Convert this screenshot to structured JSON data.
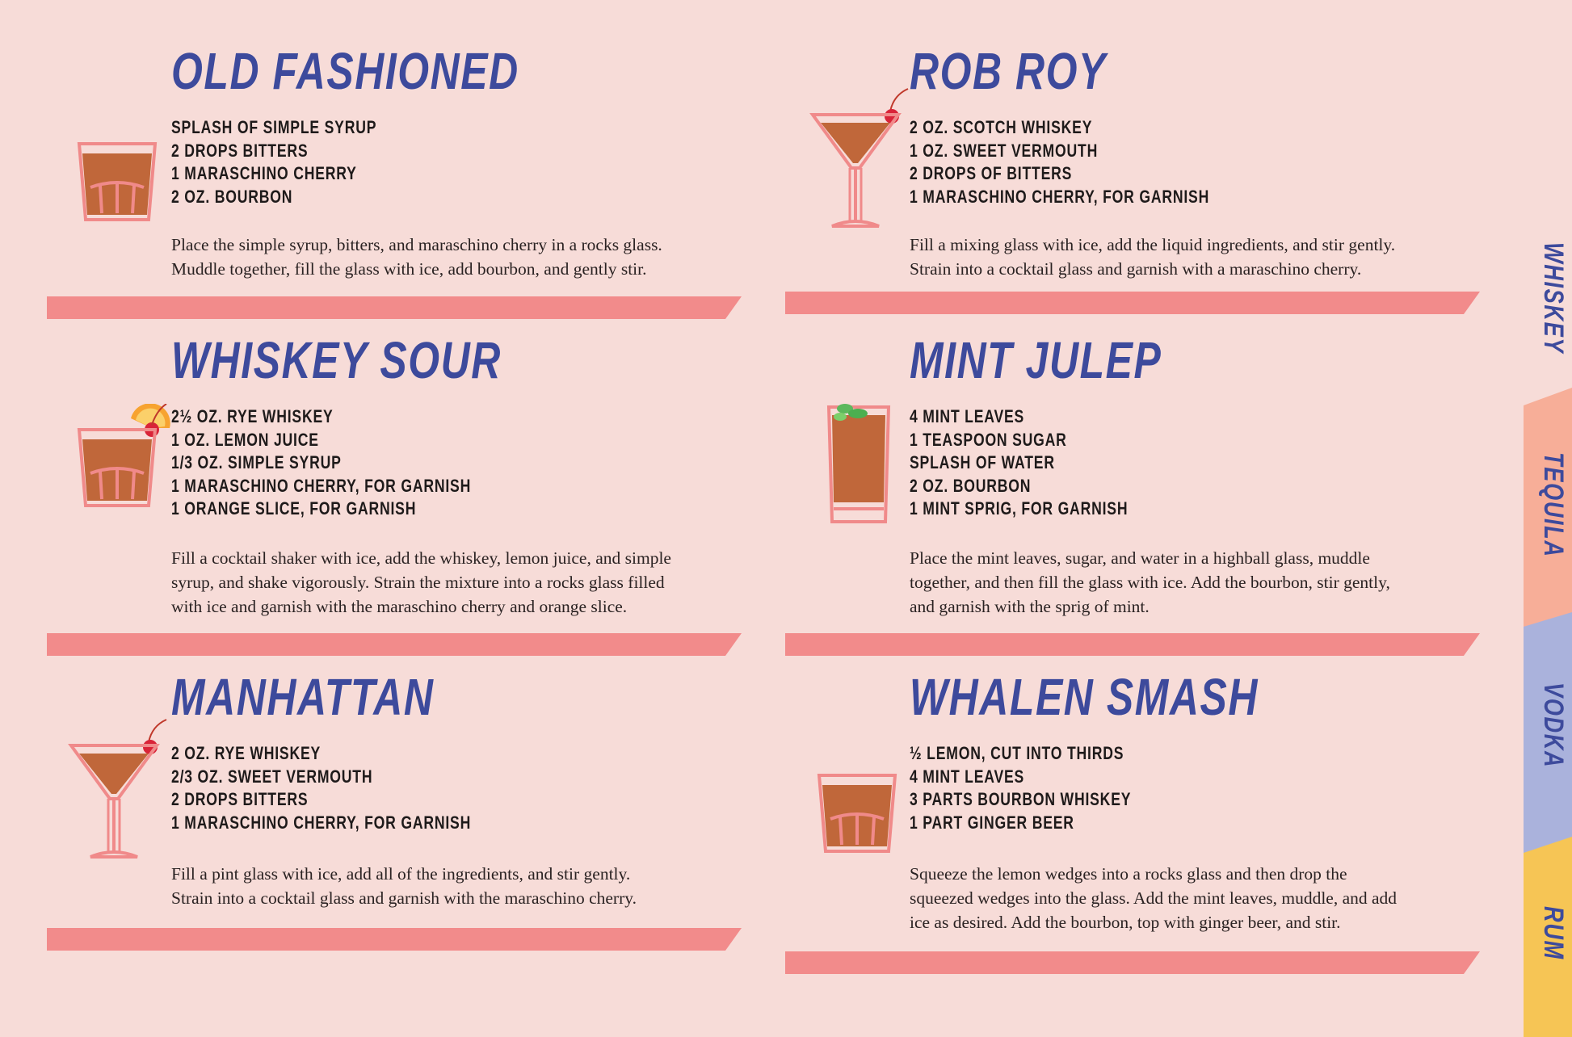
{
  "colors": {
    "background": "#f7dcd8",
    "title": "#3d4a9c",
    "bar": "#f28b8b",
    "tab_tequila": "#f7ae98",
    "tab_vodka": "#aab2dc",
    "tab_rum": "#f6c555"
  },
  "cards": [
    {
      "title": "OLD FASHIONED",
      "glass": "rocks-glass-icon",
      "ingredients": [
        "SPLASH OF SIMPLE SYRUP",
        "2 DROPS BITTERS",
        "1 MARASCHINO CHERRY",
        "2 OZ. BOURBON"
      ],
      "description": [
        "Place the simple syrup, bitters, and maraschino cherry in a rocks glass.",
        "Muddle together, fill the glass with ice, add bourbon, and gently stir."
      ]
    },
    {
      "title": "ROB ROY",
      "glass": "cocktail-glass-icon",
      "ingredients": [
        "2 OZ. SCOTCH WHISKEY",
        "1 OZ. SWEET VERMOUTH",
        "2 DROPS OF BITTERS",
        "1 MARASCHINO CHERRY, FOR GARNISH"
      ],
      "description": [
        "Fill a mixing glass with ice, add the liquid ingredients, and stir gently.",
        "Strain into a cocktail glass and garnish with a maraschino cherry."
      ]
    },
    {
      "title": "WHISKEY SOUR",
      "glass": "rocks-glass-orange-icon",
      "ingredients": [
        "2½ OZ. RYE WHISKEY",
        "1 OZ. LEMON JUICE",
        "1/3 OZ. SIMPLE SYRUP",
        "1 MARASCHINO CHERRY, FOR GARNISH",
        "1 ORANGE SLICE, FOR GARNISH"
      ],
      "description": [
        "Fill a cocktail shaker with ice, add the whiskey, lemon juice, and simple",
        "syrup, and shake vigorously. Strain the mixture into a rocks glass filled",
        "with ice and garnish with the maraschino cherry and orange slice."
      ]
    },
    {
      "title": "MINT JULEP",
      "glass": "highball-glass-icon",
      "ingredients": [
        "4 MINT LEAVES",
        "1 TEASPOON SUGAR",
        "SPLASH OF WATER",
        "2 OZ. BOURBON",
        "1 MINT SPRIG, FOR GARNISH"
      ],
      "description": [
        "Place the mint leaves, sugar, and water in a highball glass, muddle",
        "together, and then fill the glass with ice. Add the bourbon, stir gently,",
        "and garnish with the sprig of mint."
      ]
    },
    {
      "title": "MANHATTAN",
      "glass": "cocktail-glass-icon",
      "ingredients": [
        "2 OZ. RYE WHISKEY",
        "2/3 OZ. SWEET VERMOUTH",
        "2 DROPS BITTERS",
        "1 MARASCHINO CHERRY, FOR GARNISH"
      ],
      "description": [
        "Fill a pint glass with ice, add all of the ingredients, and stir gently.",
        "Strain into a cocktail glass and garnish with the maraschino cherry."
      ]
    },
    {
      "title": "WHALEN SMASH",
      "glass": "rocks-glass-icon",
      "ingredients": [
        "½ LEMON, CUT INTO THIRDS",
        "4 MINT LEAVES",
        "3 PARTS BOURBON WHISKEY",
        "1 PART GINGER BEER"
      ],
      "description": [
        "Squeeze the lemon wedges into a rocks glass and then drop the",
        "squeezed wedges into the glass. Add the mint leaves, muddle, and add",
        "ice as desired. Add the bourbon, top with ginger beer, and stir."
      ]
    }
  ],
  "tabs": [
    {
      "label": "WHISKEY",
      "color": "#f7dcd8"
    },
    {
      "label": "TEQUILA",
      "color": "#f7ae98"
    },
    {
      "label": "VODKA",
      "color": "#aab2dc"
    },
    {
      "label": "RUM",
      "color": "#f6c555"
    }
  ]
}
